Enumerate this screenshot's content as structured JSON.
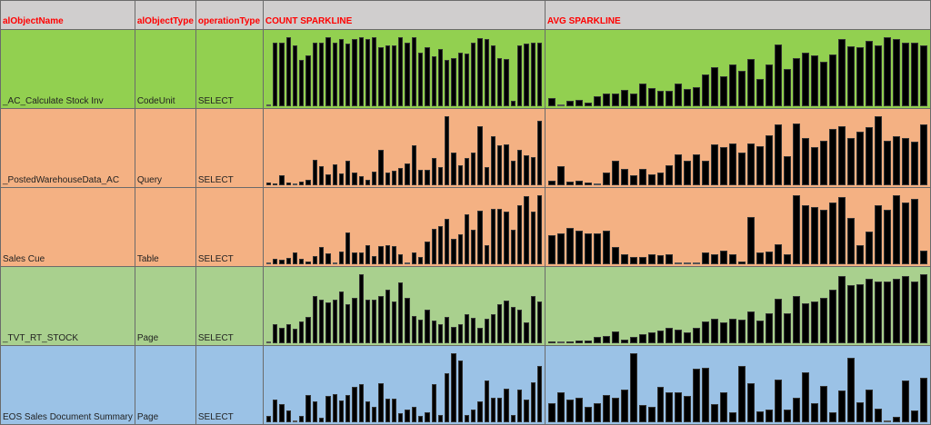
{
  "headers": [
    "alObjectName",
    "alObjectType",
    "operationType",
    "COUNT SPARKLINE",
    "AVG SPARKLINE"
  ],
  "rows": [
    {
      "name": "_AC_Calculate Stock Inv",
      "type": "CodeUnit",
      "op": "SELECT",
      "color": "#92d050",
      "count": [
        1,
        90,
        90,
        97,
        85,
        65,
        72,
        90,
        90,
        97,
        90,
        94,
        88,
        94,
        97,
        94,
        97,
        83,
        86,
        86,
        97,
        90,
        97,
        75,
        83,
        70,
        80,
        65,
        68,
        75,
        74,
        90,
        96,
        94,
        85,
        68,
        66,
        8,
        85,
        88,
        90,
        89
      ],
      "avg": [
        12,
        1,
        8,
        9,
        5,
        14,
        19,
        19,
        24,
        18,
        33,
        26,
        22,
        22,
        33,
        25,
        28,
        46,
        57,
        44,
        61,
        51,
        68,
        40,
        61,
        90,
        54,
        70,
        77,
        74,
        65,
        75,
        98,
        87,
        86,
        95,
        88,
        100,
        98,
        92,
        92,
        88
      ]
    },
    {
      "name": "_PostedWarehouseData_AC",
      "type": "Query",
      "op": "SELECT",
      "color": "#f4b183",
      "count": [
        4,
        2,
        15,
        4,
        1,
        5,
        8,
        37,
        27,
        16,
        30,
        17,
        36,
        18,
        13,
        8,
        20,
        51,
        19,
        21,
        25,
        31,
        58,
        22,
        23,
        40,
        26,
        100,
        47,
        29,
        40,
        48,
        85,
        26,
        71,
        58,
        59,
        35,
        51,
        44,
        41,
        94
      ],
      "avg": [
        6,
        27,
        5,
        7,
        4,
        1,
        18,
        35,
        24,
        15,
        24,
        16,
        18,
        29,
        45,
        35,
        45,
        35,
        59,
        55,
        60,
        48,
        61,
        57,
        72,
        88,
        42,
        89,
        69,
        55,
        64,
        82,
        85,
        68,
        78,
        84,
        100,
        65,
        71,
        69,
        63,
        88
      ]
    },
    {
      "name": "Sales Cue",
      "type": "Table",
      "op": "SELECT",
      "color": "#f4b183",
      "count": [
        1,
        8,
        6,
        9,
        17,
        8,
        4,
        12,
        25,
        16,
        1,
        18,
        46,
        17,
        17,
        27,
        12,
        26,
        28,
        26,
        14,
        1,
        17,
        11,
        33,
        51,
        55,
        66,
        37,
        43,
        72,
        50,
        78,
        28,
        80,
        80,
        76,
        50,
        86,
        99,
        76,
        100
      ],
      "avg": [
        42,
        45,
        52,
        49,
        45,
        45,
        49,
        25,
        14,
        10,
        10,
        15,
        13,
        15,
        1,
        1,
        1,
        17,
        14,
        20,
        15,
        4,
        68,
        17,
        18,
        29,
        14,
        100,
        86,
        83,
        79,
        90,
        97,
        67,
        27,
        47,
        85,
        79,
        100,
        90,
        95,
        20
      ]
    },
    {
      "name": "_TVT_RT_STOCK",
      "type": "Page",
      "op": "SELECT",
      "color": "#a9d08e",
      "count": [
        1,
        28,
        22,
        28,
        21,
        32,
        38,
        69,
        63,
        59,
        63,
        75,
        56,
        66,
        100,
        63,
        63,
        69,
        78,
        60,
        88,
        66,
        40,
        34,
        49,
        33,
        27,
        38,
        24,
        28,
        42,
        37,
        22,
        35,
        42,
        56,
        62,
        52,
        49,
        30,
        69,
        61
      ],
      "avg": [
        2,
        0,
        2,
        4,
        4,
        9,
        11,
        17,
        5,
        9,
        13,
        16,
        18,
        22,
        20,
        16,
        22,
        32,
        35,
        30,
        36,
        34,
        46,
        33,
        44,
        65,
        43,
        69,
        58,
        61,
        66,
        78,
        97,
        84,
        86,
        94,
        90,
        89,
        94,
        98,
        90,
        100
      ]
    },
    {
      "name": "EOS Sales Document Summary",
      "type": "Page",
      "op": "SELECT",
      "color": "#9bc2e6",
      "count": [
        9,
        33,
        26,
        17,
        1,
        9,
        40,
        30,
        7,
        38,
        41,
        32,
        39,
        51,
        55,
        30,
        23,
        57,
        34,
        34,
        13,
        19,
        23,
        9,
        15,
        55,
        11,
        71,
        100,
        90,
        10,
        18,
        30,
        61,
        36,
        36,
        49,
        11,
        47,
        33,
        58,
        81
      ],
      "avg": [
        28,
        43,
        33,
        35,
        23,
        28,
        39,
        35,
        48,
        100,
        25,
        23,
        51,
        43,
        43,
        38,
        78,
        79,
        26,
        44,
        15,
        82,
        56,
        16,
        19,
        62,
        18,
        35,
        72,
        28,
        52,
        15,
        46,
        94,
        29,
        48,
        20,
        1,
        8,
        60,
        17,
        64
      ]
    }
  ]
}
